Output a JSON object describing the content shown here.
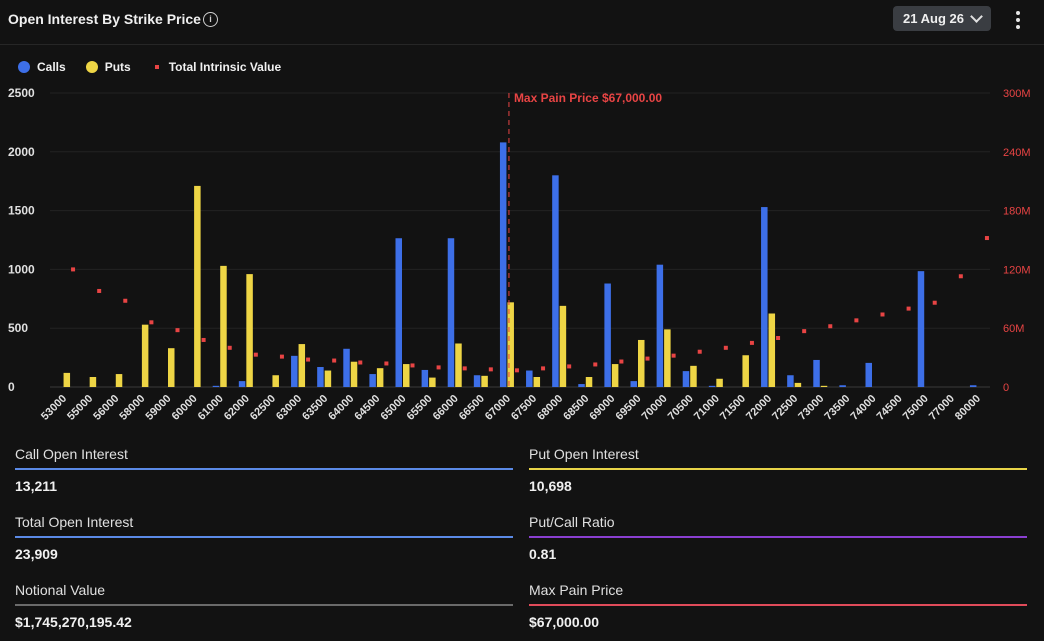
{
  "header": {
    "title": "Open Interest By Strike Price",
    "date_label": "21 Aug 26"
  },
  "legend": {
    "calls": "Calls",
    "puts": "Puts",
    "intrinsic": "Total Intrinsic Value"
  },
  "colors": {
    "calls": "#3d6fe8",
    "puts": "#eed545",
    "intrinsic": "#e84444",
    "max_pain": "#e84444",
    "call_line": "#5b8ae6",
    "put_line": "#e8d448",
    "total_line": "#5b8ae6",
    "ratio_line": "#8a3fd1",
    "notional_line": "#6a6a6a",
    "maxpain_line": "#e04b5a"
  },
  "chart_data": {
    "type": "bar",
    "categories": [
      "53000",
      "55000",
      "56000",
      "58000",
      "59000",
      "60000",
      "61000",
      "62000",
      "62500",
      "63000",
      "63500",
      "64000",
      "64500",
      "65000",
      "65500",
      "66000",
      "66500",
      "67000",
      "67500",
      "68000",
      "68500",
      "69000",
      "69500",
      "70000",
      "70500",
      "71000",
      "71500",
      "72000",
      "72500",
      "73000",
      "73500",
      "74000",
      "74500",
      "75000",
      "77000",
      "80000"
    ],
    "series": [
      {
        "name": "Calls",
        "axis": "left",
        "values": [
          0,
          0,
          0,
          0,
          0,
          0,
          10,
          50,
          0,
          265,
          170,
          325,
          110,
          1265,
          145,
          1265,
          100,
          2080,
          140,
          1800,
          25,
          880,
          50,
          1040,
          135,
          10,
          0,
          1530,
          100,
          230,
          15,
          205,
          0,
          985,
          0,
          15
        ]
      },
      {
        "name": "Puts",
        "axis": "left",
        "values": [
          120,
          85,
          110,
          530,
          330,
          1710,
          1030,
          960,
          100,
          365,
          140,
          215,
          160,
          195,
          80,
          370,
          95,
          720,
          85,
          690,
          85,
          195,
          400,
          490,
          180,
          70,
          270,
          625,
          35,
          10,
          0,
          0,
          0,
          0,
          0,
          0
        ]
      },
      {
        "name": "Total Intrinsic Value",
        "axis": "right",
        "type": "scatter",
        "values": [
          120,
          98,
          88,
          66,
          58,
          48,
          40,
          33,
          31,
          28,
          27,
          25,
          24,
          22,
          20,
          19,
          18,
          17,
          19,
          21,
          23,
          26,
          29,
          32,
          36,
          40,
          45,
          50,
          57,
          62,
          68,
          74,
          80,
          86,
          113,
          152
        ]
      }
    ],
    "y_left": {
      "min": 0,
      "max": 2500,
      "ticks": [
        0,
        500,
        1000,
        1500,
        2000,
        2500
      ]
    },
    "y_right": {
      "min": 0,
      "max": 300,
      "ticks": [
        "0",
        "60M",
        "120M",
        "180M",
        "240M",
        "300M"
      ],
      "unit": "M"
    },
    "annotation": {
      "label": "Max Pain Price $67,000.00",
      "category": "67000"
    },
    "grid": true,
    "legend_position": "top-left"
  },
  "stats": {
    "call_oi": {
      "label": "Call Open Interest",
      "value": "13,211"
    },
    "put_oi": {
      "label": "Put Open Interest",
      "value": "10,698"
    },
    "total_oi": {
      "label": "Total Open Interest",
      "value": "23,909"
    },
    "pc_ratio": {
      "label": "Put/Call Ratio",
      "value": "0.81"
    },
    "notional": {
      "label": "Notional Value",
      "value": "$1,745,270,195.42"
    },
    "max_pain": {
      "label": "Max Pain Price",
      "value": "$67,000.00"
    }
  }
}
